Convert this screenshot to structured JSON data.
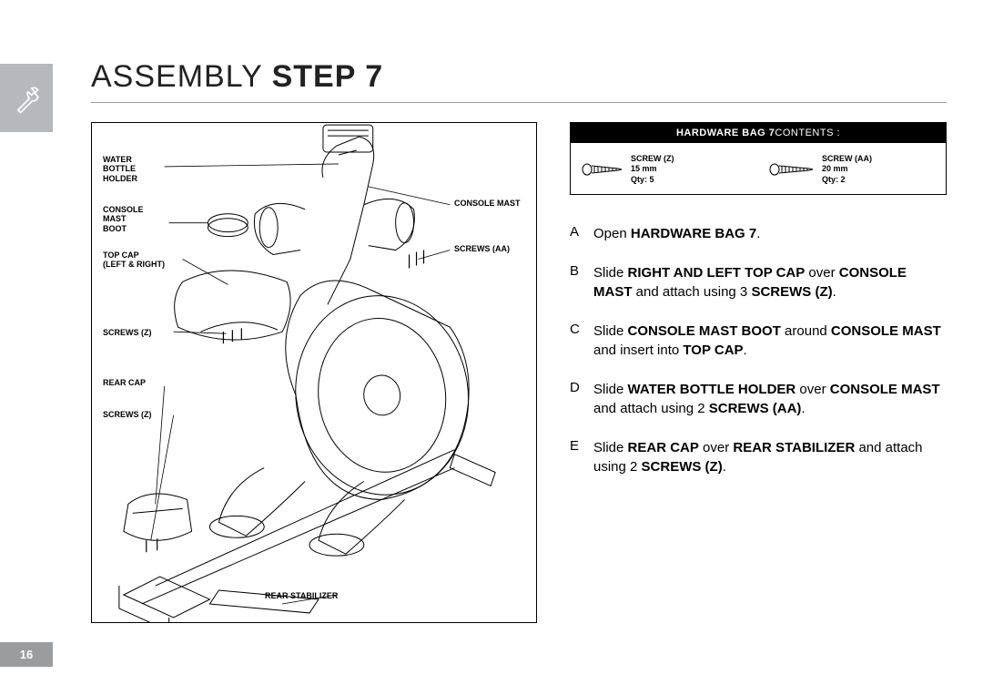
{
  "page_number": "16",
  "title_light": "ASSEMBLY ",
  "title_bold": "STEP 7",
  "colors": {
    "tab_bg": "#b6b8bb",
    "rule": "#999999",
    "black": "#000000",
    "white": "#ffffff",
    "pagenum_bg": "#9a9c9e"
  },
  "hardware_header_bold": "HARDWARE BAG 7",
  "hardware_header_rest": " CONTENTS :",
  "hardware_items": [
    {
      "name": "SCREW (Z)",
      "size": "15 mm",
      "qty": "Qty: 5"
    },
    {
      "name": "SCREW (AA)",
      "size": "20 mm",
      "qty": "Qty: 2"
    }
  ],
  "diagram_labels": {
    "water_bottle_holder": "WATER\nBOTTLE\nHOLDER",
    "console_mast_boot": "CONSOLE\nMAST\nBOOT",
    "top_cap": "TOP CAP\n(LEFT & RIGHT)",
    "screws_z_1": "SCREWS (Z)",
    "rear_cap": "REAR CAP",
    "screws_z_2": "SCREWS (Z)",
    "console_mast": "CONSOLE MAST",
    "screws_aa": "SCREWS (AA)",
    "rear_stabilizer": "REAR STABILIZER"
  },
  "instructions": [
    {
      "letter": "A",
      "segments": [
        {
          "t": "Open ",
          "b": false
        },
        {
          "t": "HARDWARE BAG 7",
          "b": true
        },
        {
          "t": ".",
          "b": false
        }
      ]
    },
    {
      "letter": "B",
      "segments": [
        {
          "t": "Slide ",
          "b": false
        },
        {
          "t": "RIGHT AND LEFT TOP CAP",
          "b": true
        },
        {
          "t": " over ",
          "b": false
        },
        {
          "t": "CONSOLE MAST",
          "b": true
        },
        {
          "t": " and attach using 3 ",
          "b": false
        },
        {
          "t": "SCREWS (Z)",
          "b": true
        },
        {
          "t": ".",
          "b": false
        }
      ]
    },
    {
      "letter": "C",
      "segments": [
        {
          "t": "Slide ",
          "b": false
        },
        {
          "t": "CONSOLE MAST BOOT",
          "b": true
        },
        {
          "t": " around ",
          "b": false
        },
        {
          "t": "CONSOLE MAST",
          "b": true
        },
        {
          "t": " and insert into ",
          "b": false
        },
        {
          "t": "TOP CAP",
          "b": true
        },
        {
          "t": ".",
          "b": false
        }
      ]
    },
    {
      "letter": "D",
      "segments": [
        {
          "t": "Slide ",
          "b": false
        },
        {
          "t": "WATER BOTTLE HOLDER",
          "b": true
        },
        {
          "t": " over ",
          "b": false
        },
        {
          "t": "CONSOLE MAST",
          "b": true
        },
        {
          "t": " and attach using 2 ",
          "b": false
        },
        {
          "t": "SCREWS (AA)",
          "b": true
        },
        {
          "t": ".",
          "b": false
        }
      ]
    },
    {
      "letter": "E",
      "segments": [
        {
          "t": "Slide ",
          "b": false
        },
        {
          "t": "REAR CAP",
          "b": true
        },
        {
          "t": " over ",
          "b": false
        },
        {
          "t": "REAR STABILIZER",
          "b": true
        },
        {
          "t": " and attach using 2 ",
          "b": false
        },
        {
          "t": "SCREWS (Z)",
          "b": true
        },
        {
          "t": ".",
          "b": false
        }
      ]
    }
  ]
}
